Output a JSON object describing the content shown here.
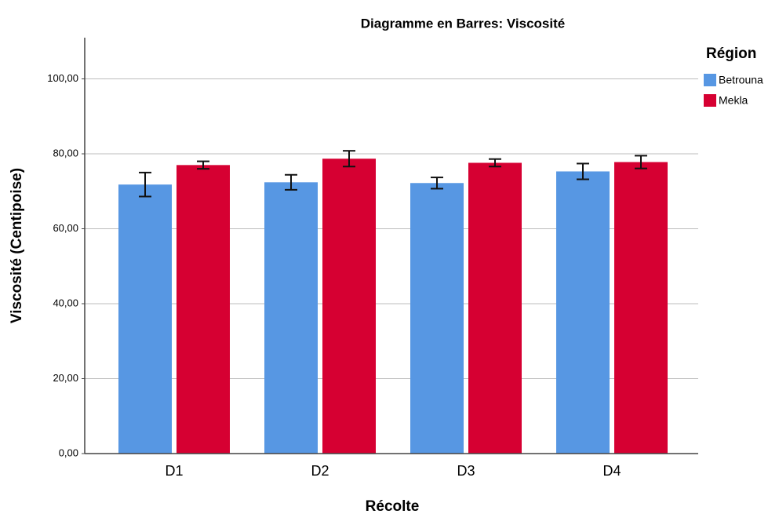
{
  "chart_data": {
    "type": "bar",
    "title": "Diagramme en Barres:  Viscosité",
    "x_label": "Récolte",
    "y_label": "Viscosité (Centipoise)",
    "legend_title": "Région",
    "legend_position": "right",
    "grid": true,
    "categories": [
      "D1",
      "D2",
      "D3",
      "D4"
    ],
    "series": [
      {
        "name": "Betrouna",
        "color": "#5797e3",
        "values": [
          71.8,
          72.4,
          72.2,
          75.3
        ],
        "errors": [
          3.2,
          2.0,
          1.5,
          2.1
        ]
      },
      {
        "name": "Mekla",
        "color": "#d60032",
        "values": [
          77.0,
          78.7,
          77.6,
          77.8
        ],
        "errors": [
          1.0,
          2.1,
          1.0,
          1.7
        ]
      }
    ],
    "ylim": [
      0,
      111
    ],
    "yticks": [
      {
        "value": 0,
        "label": "0,00"
      },
      {
        "value": 20,
        "label": "20,00"
      },
      {
        "value": 40,
        "label": "40,00"
      },
      {
        "value": 60,
        "label": "60,00"
      },
      {
        "value": 80,
        "label": "80,00"
      },
      {
        "value": 100,
        "label": "100,00"
      }
    ]
  }
}
